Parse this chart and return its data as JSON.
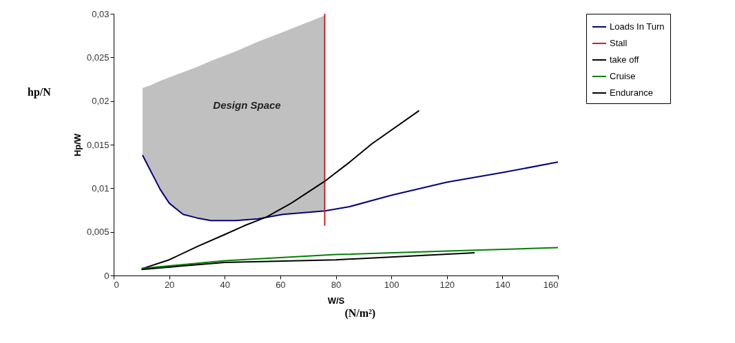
{
  "chart_data": {
    "type": "line",
    "xlabel": "W/S",
    "ylabel": "Hp/W",
    "annotations": [
      "Design Space",
      "hp/N",
      "(N/m²)"
    ],
    "xlim": [
      0,
      160
    ],
    "xticks": [
      0,
      20,
      40,
      60,
      80,
      100,
      120,
      140,
      160
    ],
    "ylim": [
      0,
      0.03
    ],
    "yticks": [
      0,
      {
        "value": 0.005,
        "label": "0,005"
      },
      {
        "value": 0.01,
        "label": "0,01"
      },
      {
        "value": 0.015,
        "label": "0,015"
      },
      {
        "value": 0.02,
        "label": "0,02"
      },
      {
        "value": 0.025,
        "label": "0,025"
      },
      {
        "value": 0.03,
        "label": "0,03"
      }
    ],
    "grid": false,
    "legend": "right",
    "marker": "none",
    "line_style": "solid",
    "series": [
      {
        "name": "Loads In Turn",
        "color": "#000080",
        "x": [
          10.4,
          13.3,
          16.7,
          20,
          25,
          30,
          35,
          44,
          52,
          61,
          76,
          85,
          100,
          120,
          140,
          160
        ],
        "values": [
          0.0138,
          0.012,
          0.0099,
          0.0083,
          0.007,
          0.0066,
          0.0063,
          0.0063,
          0.0065,
          0.007,
          0.0074,
          0.0079,
          0.0092,
          0.0107,
          0.0118,
          0.013
        ],
        "lower": [
          0.0138,
          0.012,
          0.0099,
          0.0083,
          0.007,
          0.0066,
          0.0063,
          0.0063,
          0.0065,
          0.007,
          0.0074,
          null,
          null,
          null,
          null,
          null
        ],
        "upper": [
          0.0215,
          0.0218,
          0.0223,
          0.0227,
          0.0233,
          0.0239,
          0.0246,
          0.0257,
          0.0268,
          0.0279,
          0.0298,
          null,
          null,
          null,
          null,
          null
        ]
      },
      {
        "name": "Stall",
        "color": "#d02020",
        "x": [
          76,
          76
        ],
        "values": [
          0.0057,
          0.03
        ]
      },
      {
        "name": "take off",
        "color": "#000000",
        "x": [
          10.4,
          20,
          30,
          40,
          47,
          55,
          64,
          76,
          85,
          93,
          110
        ],
        "values": [
          0.0008,
          0.0018,
          0.0033,
          0.0047,
          0.0057,
          0.0067,
          0.0083,
          0.0108,
          0.013,
          0.0151,
          0.0189
        ]
      },
      {
        "name": "Cruise",
        "color": "#008000",
        "x": [
          10,
          40,
          80,
          120,
          160
        ],
        "values": [
          0.0008,
          0.0017,
          0.0024,
          0.0028,
          0.0032
        ]
      },
      {
        "name": "Endurance",
        "color": "#000000",
        "x": [
          10,
          40,
          80,
          130
        ],
        "values": [
          0.0007,
          0.0015,
          0.0018,
          0.0026
        ]
      }
    ]
  }
}
